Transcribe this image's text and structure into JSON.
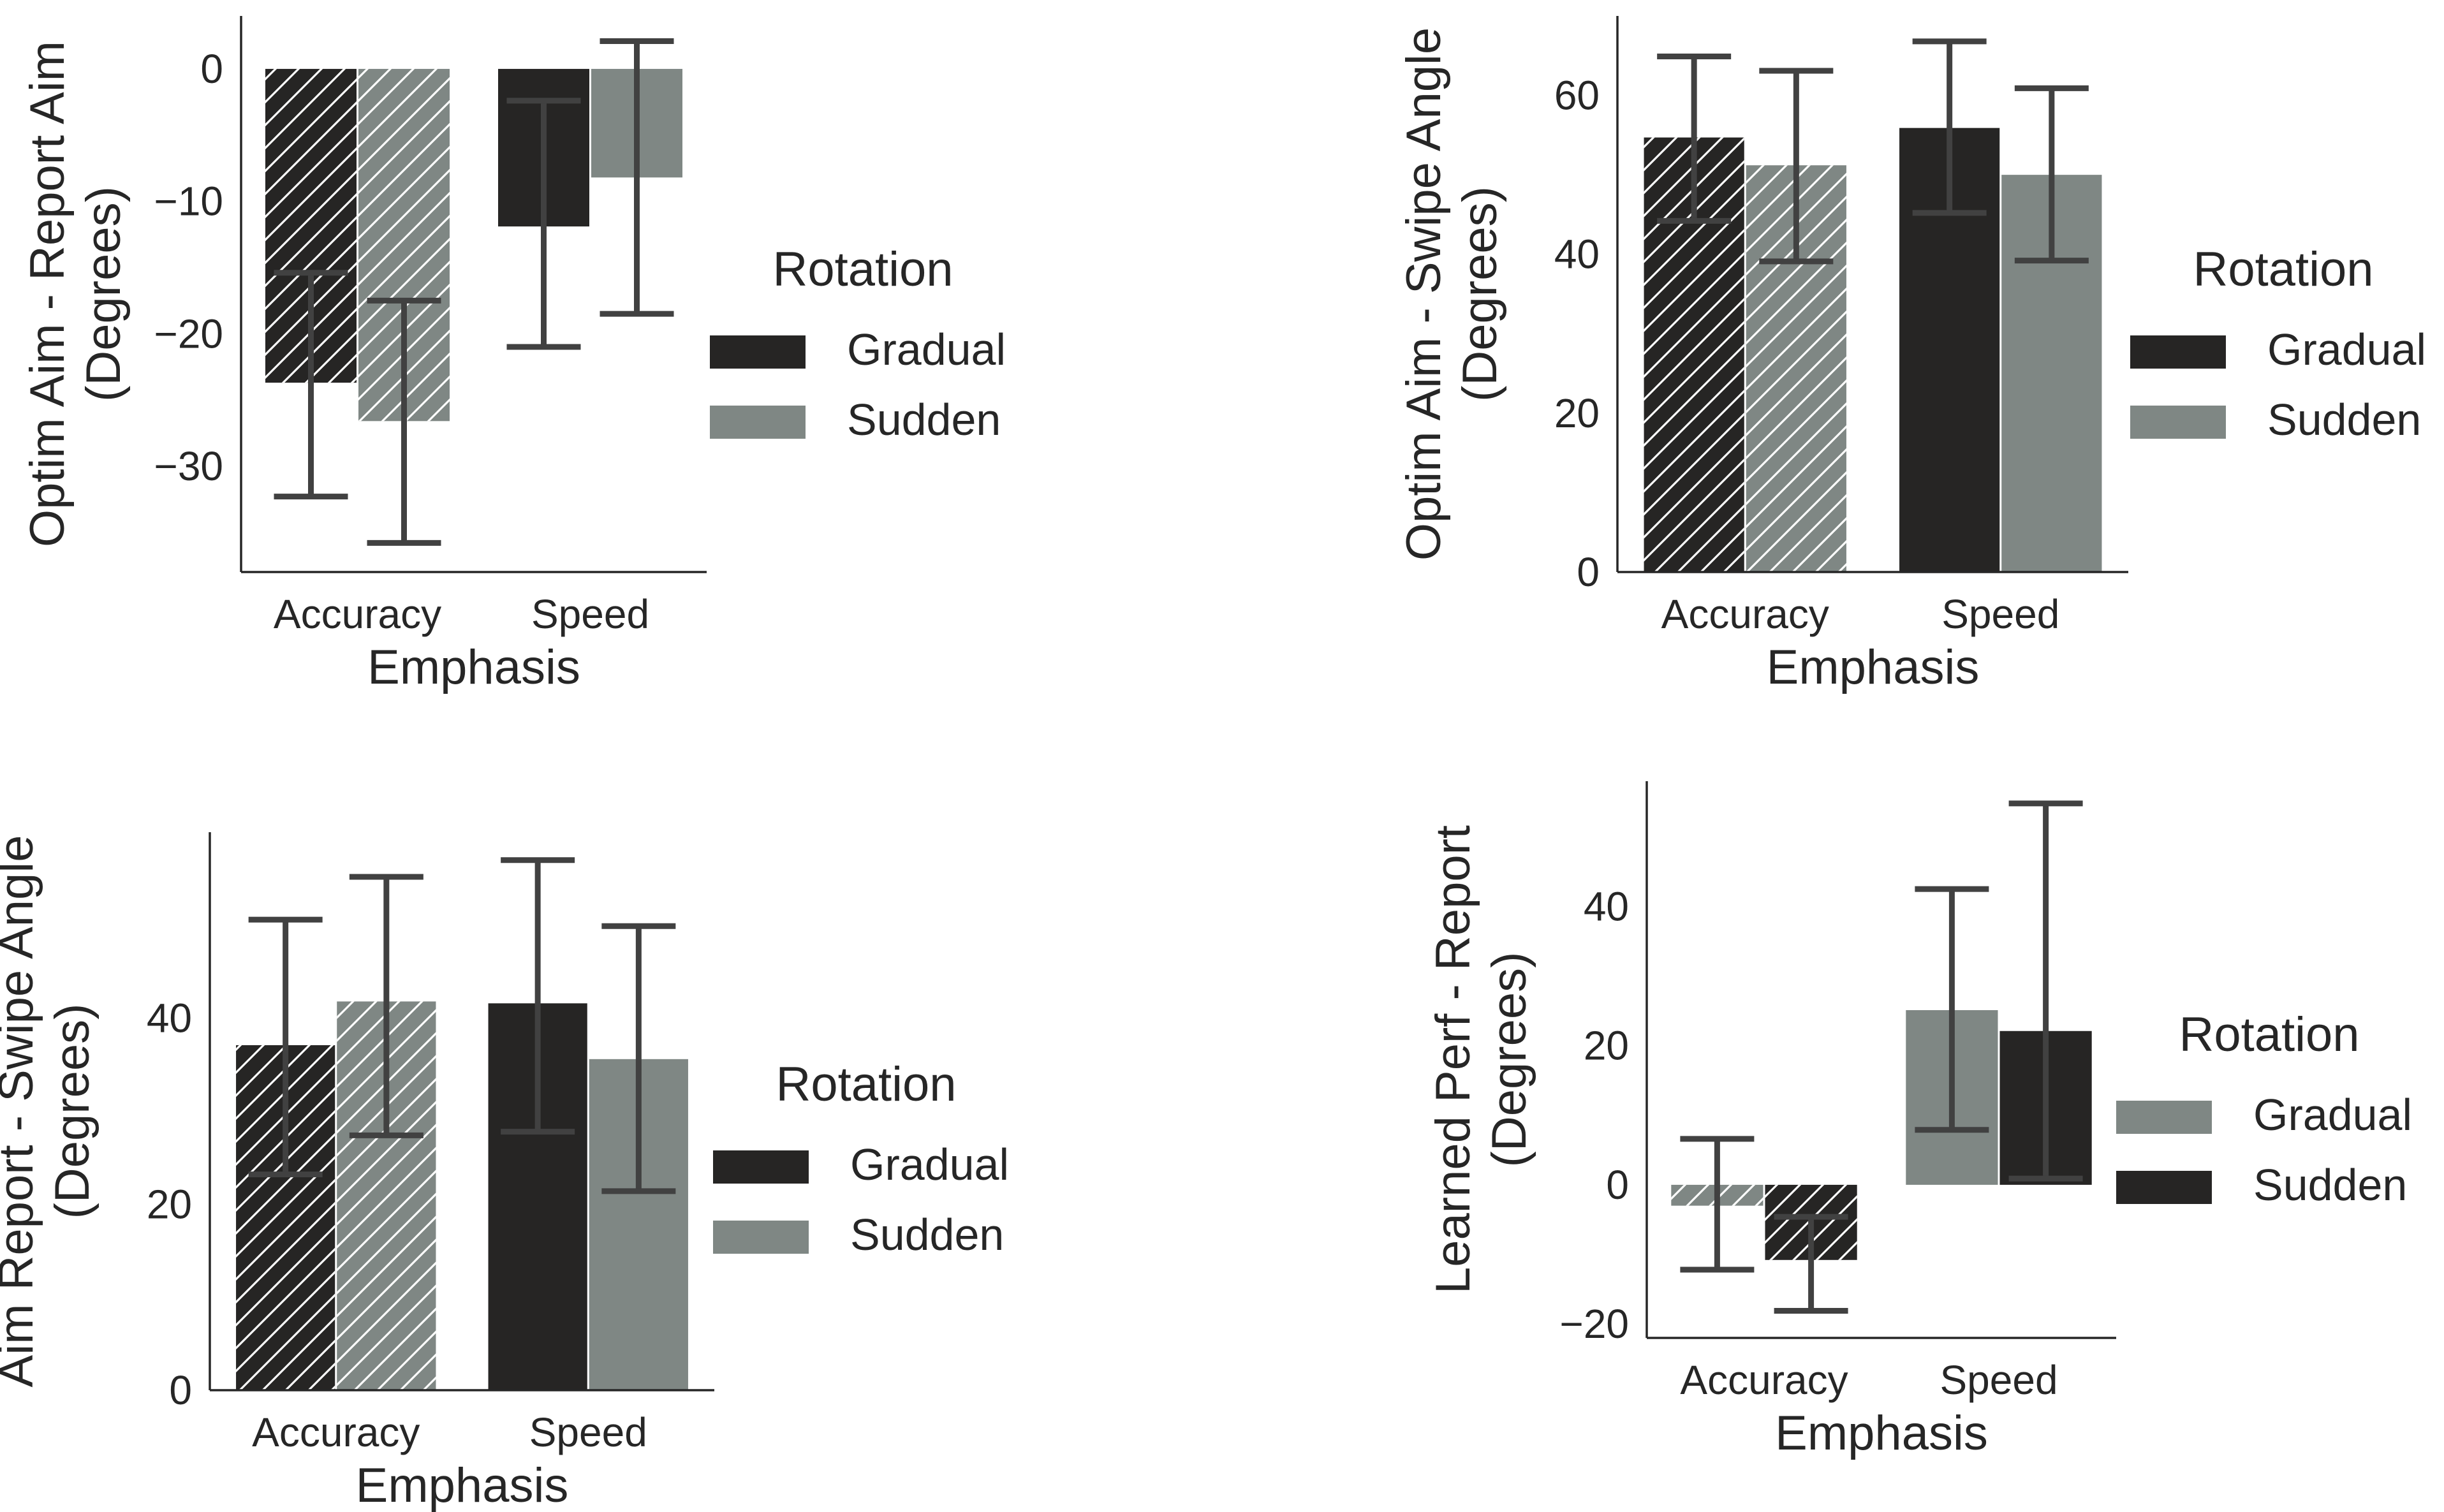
{
  "colors": {
    "dark": "#262524",
    "gray": "#7f8784",
    "axis": "#262626",
    "errorbar": "#414141",
    "hatch": "#ffffff"
  },
  "chart_data": [
    {
      "type": "bar",
      "categories": [
        "Accuracy",
        "Speed"
      ],
      "xlabel": "Emphasis",
      "ylabel": [
        "Optim Aim - Report Aim",
        "(Degrees)"
      ],
      "ylim": [
        -38,
        4
      ],
      "yticks": [
        0,
        -10,
        -20,
        -30
      ],
      "ytick_labels": [
        "0",
        "−10",
        "−20",
        "−30"
      ],
      "legend": {
        "title": "Rotation",
        "location": "right",
        "entries": [
          {
            "name": "Gradual",
            "color": "#262524"
          },
          {
            "name": "Sudden",
            "color": "#7f8784"
          }
        ]
      },
      "series": [
        {
          "name": "Gradual",
          "color": "#262524",
          "values": [
            -23.7,
            -11.9
          ],
          "ci_low": [
            -32.3,
            -21.0
          ],
          "ci_high": [
            -15.4,
            -2.4
          ],
          "hatched": [
            true,
            false
          ]
        },
        {
          "name": "Sudden",
          "color": "#7f8784",
          "values": [
            -26.6,
            -8.2
          ],
          "ci_low": [
            -35.8,
            -18.5
          ],
          "ci_high": [
            -17.5,
            2.1
          ],
          "hatched": [
            true,
            false
          ]
        }
      ]
    },
    {
      "type": "bar",
      "categories": [
        "Accuracy",
        "Speed"
      ],
      "xlabel": "Emphasis",
      "ylabel": [
        "Optim Aim - Swipe Angle",
        "(Degrees)"
      ],
      "ylim": [
        0,
        70
      ],
      "yticks": [
        0,
        20,
        40,
        60
      ],
      "ytick_labels": [
        "0",
        "20",
        "40",
        "60"
      ],
      "legend": {
        "title": "Rotation",
        "location": "right",
        "entries": [
          {
            "name": "Gradual",
            "color": "#262524"
          },
          {
            "name": "Sudden",
            "color": "#7f8784"
          }
        ]
      },
      "series": [
        {
          "name": "Gradual",
          "color": "#262524",
          "values": [
            54.7,
            55.9
          ],
          "ci_low": [
            44.2,
            45.2
          ],
          "ci_high": [
            64.9,
            66.8
          ],
          "hatched": [
            true,
            false
          ]
        },
        {
          "name": "Sudden",
          "color": "#7f8784",
          "values": [
            51.2,
            50.0
          ],
          "ci_low": [
            39.1,
            39.2
          ],
          "ci_high": [
            63.1,
            60.9
          ],
          "hatched": [
            true,
            false
          ]
        }
      ]
    },
    {
      "type": "bar",
      "categories": [
        "Accuracy",
        "Speed"
      ],
      "xlabel": "Emphasis",
      "ylabel": [
        "Aim Report - Swipe Angle",
        "(Degrees)"
      ],
      "ylim": [
        0,
        60
      ],
      "yticks": [
        0,
        20,
        40
      ],
      "ytick_labels": [
        "0",
        "20",
        "40"
      ],
      "legend": {
        "title": "Rotation",
        "location": "right",
        "entries": [
          {
            "name": "Gradual",
            "color": "#262524"
          },
          {
            "name": "Sudden",
            "color": "#7f8784"
          }
        ]
      },
      "series": [
        {
          "name": "Gradual",
          "color": "#262524",
          "values": [
            37.1,
            41.6
          ],
          "ci_low": [
            23.2,
            27.8
          ],
          "ci_high": [
            50.6,
            57.0
          ],
          "hatched": [
            true,
            false
          ]
        },
        {
          "name": "Sudden",
          "color": "#7f8784",
          "values": [
            41.8,
            35.6
          ],
          "ci_low": [
            27.4,
            21.4
          ],
          "ci_high": [
            55.2,
            49.9
          ],
          "hatched": [
            true,
            false
          ]
        }
      ]
    },
    {
      "type": "bar",
      "categories": [
        "Accuracy",
        "Speed"
      ],
      "xlabel": "Emphasis",
      "ylabel": [
        "Learned Perf - Report",
        "(Degrees)"
      ],
      "ylim": [
        -22,
        58
      ],
      "yticks": [
        40,
        20,
        0,
        -20
      ],
      "ytick_labels": [
        "40",
        "20",
        "0",
        "−20"
      ],
      "legend": {
        "title": "Rotation",
        "location": "right",
        "entries": [
          {
            "name": "Gradual",
            "color": "#7f8784"
          },
          {
            "name": "Sudden",
            "color": "#262524"
          }
        ]
      },
      "series": [
        {
          "name": "Gradual",
          "color": "#7f8784",
          "values": [
            -3.0,
            25.1
          ],
          "ci_low": [
            -12.2,
            7.9
          ],
          "ci_high": [
            6.6,
            42.5
          ],
          "hatched": [
            true,
            false
          ]
        },
        {
          "name": "Sudden",
          "color": "#262524",
          "values": [
            -10.8,
            22.1
          ],
          "ci_low": [
            -18.1,
            0.9
          ],
          "ci_high": [
            -4.6,
            54.8
          ],
          "hatched": [
            true,
            false
          ]
        }
      ]
    }
  ]
}
